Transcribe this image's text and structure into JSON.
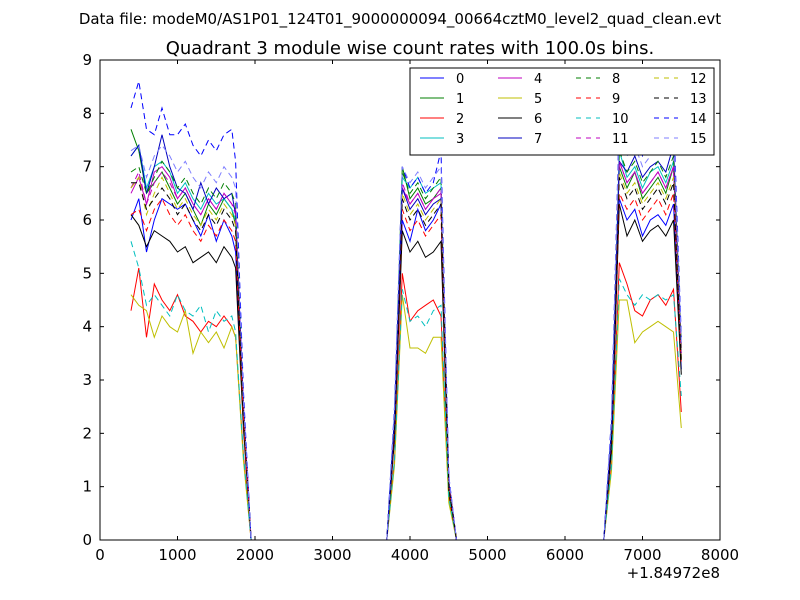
{
  "header": {
    "data_file_line": "Data file: modeM0/AS1P01_124T01_9000000094_00664cztM0_level2_quad_clean.evt"
  },
  "chart_data": {
    "type": "line",
    "title": "Quadrant 3 module wise count rates with 100.0s bins.",
    "xlabel": "",
    "ylabel": "",
    "xlim": [
      0,
      8000
    ],
    "ylim": [
      0,
      9
    ],
    "x_offset_label": "+1.84972e8",
    "x_ticks": [
      0,
      1000,
      2000,
      3000,
      4000,
      5000,
      6000,
      7000,
      8000
    ],
    "x_tick_labels": [
      "0",
      "1000",
      "2000",
      "3000",
      "4000",
      "5000",
      "6000",
      "7000",
      "8000"
    ],
    "y_ticks": [
      0,
      1,
      2,
      3,
      4,
      5,
      6,
      7,
      8,
      9
    ],
    "y_tick_labels": [
      "0",
      "1",
      "2",
      "3",
      "4",
      "5",
      "6",
      "7",
      "8",
      "9"
    ],
    "grid": false,
    "legend": {
      "position": "top-right",
      "columns": 4
    },
    "segments": [
      {
        "x": [
          400,
          500,
          600,
          700,
          800,
          900,
          1000,
          1100,
          1200,
          1300,
          1400,
          1500,
          1600,
          1700,
          1750,
          1850,
          1950
        ]
      },
      {
        "x": [
          3700,
          3800,
          3900,
          4000,
          4100,
          4200,
          4300,
          4400,
          4500,
          4600,
          4700
        ]
      },
      {
        "x": [
          6500,
          6600,
          6700,
          6800,
          6900,
          7000,
          7100,
          7200,
          7300,
          7400,
          7500
        ]
      }
    ],
    "series": [
      {
        "name": "0",
        "color": "#0000ff",
        "dash": "solid",
        "values": [
          [
            6.0,
            6.4,
            5.4,
            6.0,
            6.4,
            6.3,
            6.2,
            6.3,
            6.0,
            5.7,
            6.1,
            5.6,
            6.0,
            5.7,
            5.4,
            2.2,
            0
          ],
          [
            0,
            2.0,
            6.0,
            5.6,
            6.2,
            5.8,
            6.0,
            6.3,
            1.0,
            0,
            0
          ],
          [
            0,
            1.8,
            6.4,
            6.0,
            6.2,
            5.7,
            6.0,
            6.1,
            5.9,
            6.3,
            3.2
          ]
        ]
      },
      {
        "name": "1",
        "color": "#007f00",
        "dash": "solid",
        "values": [
          [
            7.7,
            7.3,
            6.5,
            6.7,
            6.9,
            6.6,
            6.3,
            6.5,
            6.2,
            5.9,
            6.3,
            6.1,
            6.4,
            6.2,
            5.9,
            2.4,
            0
          ],
          [
            0,
            2.2,
            7.0,
            6.4,
            6.6,
            6.3,
            6.4,
            6.6,
            1.1,
            0,
            0
          ],
          [
            0,
            2.0,
            7.0,
            6.6,
            6.9,
            6.4,
            6.6,
            6.8,
            6.5,
            7.0,
            3.4
          ]
        ]
      },
      {
        "name": "2",
        "color": "#ff0000",
        "dash": "solid",
        "values": [
          [
            4.3,
            5.1,
            3.8,
            4.8,
            4.5,
            4.3,
            4.6,
            4.2,
            4.1,
            3.9,
            4.1,
            4.0,
            4.2,
            4.0,
            3.8,
            1.6,
            0
          ],
          [
            0,
            1.5,
            5.0,
            4.1,
            4.3,
            4.4,
            4.5,
            4.2,
            0.8,
            0,
            0
          ],
          [
            0,
            1.4,
            5.2,
            4.8,
            4.3,
            4.2,
            4.5,
            4.6,
            4.4,
            4.7,
            2.4
          ]
        ]
      },
      {
        "name": "3",
        "color": "#00bfbf",
        "dash": "solid",
        "values": [
          [
            7.2,
            7.4,
            6.6,
            7.0,
            7.1,
            6.9,
            6.5,
            6.7,
            6.4,
            6.2,
            6.5,
            6.3,
            6.4,
            6.2,
            6.0,
            2.5,
            0
          ],
          [
            0,
            2.3,
            6.8,
            6.6,
            6.8,
            6.5,
            6.6,
            6.7,
            1.1,
            0,
            0
          ],
          [
            0,
            2.1,
            7.3,
            6.8,
            7.0,
            6.6,
            6.9,
            7.0,
            6.7,
            7.1,
            3.5
          ]
        ]
      },
      {
        "name": "4",
        "color": "#bf00bf",
        "dash": "solid",
        "values": [
          [
            6.5,
            6.8,
            6.3,
            6.9,
            7.0,
            6.8,
            6.4,
            6.6,
            6.3,
            6.1,
            6.4,
            6.2,
            6.5,
            6.3,
            6.2,
            2.5,
            0
          ],
          [
            0,
            2.2,
            6.6,
            6.3,
            6.5,
            6.2,
            6.4,
            6.5,
            1.1,
            0,
            0
          ],
          [
            0,
            2.0,
            7.1,
            6.7,
            6.9,
            6.5,
            6.7,
            6.9,
            6.6,
            7.0,
            3.4
          ]
        ]
      },
      {
        "name": "5",
        "color": "#bfbf00",
        "dash": "solid",
        "values": [
          [
            4.6,
            4.4,
            4.3,
            3.8,
            4.2,
            4.0,
            3.9,
            4.3,
            3.5,
            3.9,
            3.7,
            3.9,
            3.6,
            4.0,
            3.8,
            1.5,
            0
          ],
          [
            0,
            1.4,
            4.6,
            3.6,
            3.6,
            3.5,
            3.8,
            3.8,
            0.7,
            0,
            0
          ],
          [
            0,
            1.3,
            4.5,
            4.5,
            3.7,
            3.9,
            4.0,
            4.1,
            4.0,
            3.9,
            2.1
          ]
        ]
      },
      {
        "name": "6",
        "color": "#000000",
        "dash": "solid",
        "values": [
          [
            6.1,
            5.9,
            5.5,
            5.8,
            5.7,
            5.6,
            5.4,
            5.5,
            5.2,
            5.3,
            5.4,
            5.2,
            5.5,
            5.3,
            5.1,
            2.1,
            0
          ],
          [
            0,
            1.9,
            5.8,
            5.4,
            5.6,
            5.3,
            5.4,
            5.6,
            0.9,
            0,
            0
          ],
          [
            0,
            1.7,
            6.3,
            5.7,
            6.0,
            5.6,
            5.8,
            5.9,
            5.7,
            6.0,
            3.1
          ]
        ]
      },
      {
        "name": "7",
        "color": "#0000bf",
        "dash": "solid",
        "values": [
          [
            7.2,
            7.4,
            6.5,
            7.0,
            7.6,
            7.0,
            6.6,
            6.5,
            6.2,
            6.7,
            6.3,
            6.6,
            6.4,
            6.5,
            6.1,
            2.5,
            0
          ],
          [
            0,
            2.3,
            6.6,
            6.2,
            6.4,
            6.1,
            6.3,
            6.4,
            1.1,
            0,
            0
          ],
          [
            0,
            2.1,
            7.1,
            6.9,
            7.2,
            6.8,
            7.0,
            7.1,
            6.9,
            7.4,
            3.6
          ]
        ]
      },
      {
        "name": "8",
        "color": "#007f00",
        "dash": "dashed",
        "values": [
          [
            6.9,
            7.0,
            6.5,
            6.8,
            7.1,
            6.9,
            6.6,
            6.8,
            6.5,
            6.3,
            6.6,
            6.4,
            6.7,
            6.5,
            6.3,
            2.6,
            0
          ],
          [
            0,
            2.3,
            6.9,
            6.5,
            6.7,
            6.4,
            6.6,
            6.8,
            1.1,
            0,
            0
          ],
          [
            0,
            2.1,
            7.3,
            6.9,
            7.1,
            6.7,
            6.9,
            7.1,
            6.8,
            7.2,
            3.6
          ]
        ]
      },
      {
        "name": "9",
        "color": "#ff0000",
        "dash": "dashed",
        "values": [
          [
            6.1,
            6.2,
            5.8,
            6.2,
            6.4,
            6.1,
            5.9,
            6.1,
            5.8,
            5.6,
            5.9,
            5.7,
            6.0,
            5.8,
            5.6,
            2.3,
            0
          ],
          [
            0,
            2.0,
            6.2,
            5.8,
            6.0,
            5.7,
            5.9,
            6.1,
            1.0,
            0,
            0
          ],
          [
            0,
            1.9,
            6.5,
            6.2,
            6.4,
            6.0,
            6.2,
            6.4,
            6.1,
            6.5,
            3.3
          ]
        ]
      },
      {
        "name": "10",
        "color": "#00bfbf",
        "dash": "dashed",
        "values": [
          [
            5.6,
            5.1,
            4.4,
            4.6,
            4.4,
            4.2,
            4.6,
            4.3,
            4.2,
            4.4,
            3.9,
            4.3,
            4.1,
            4.2,
            3.9,
            1.6,
            0
          ],
          [
            0,
            1.5,
            4.7,
            4.1,
            4.2,
            4.0,
            4.3,
            4.4,
            0.8,
            0,
            0
          ],
          [
            0,
            1.4,
            4.9,
            4.6,
            4.4,
            4.6,
            4.5,
            4.6,
            4.5,
            4.6,
            2.7
          ]
        ]
      },
      {
        "name": "11",
        "color": "#bf00bf",
        "dash": "dashed",
        "values": [
          [
            6.6,
            6.9,
            6.3,
            6.7,
            6.9,
            6.7,
            6.4,
            6.6,
            6.3,
            6.1,
            6.4,
            6.2,
            6.5,
            6.3,
            6.1,
            2.5,
            0
          ],
          [
            0,
            2.2,
            6.7,
            6.3,
            6.5,
            6.2,
            6.4,
            6.6,
            1.1,
            0,
            0
          ],
          [
            0,
            2.0,
            7.1,
            6.7,
            6.9,
            6.5,
            6.7,
            6.9,
            6.6,
            7.0,
            3.5
          ]
        ]
      },
      {
        "name": "12",
        "color": "#bfbf00",
        "dash": "dashed",
        "values": [
          [
            6.6,
            6.8,
            6.1,
            6.5,
            6.8,
            6.5,
            6.2,
            6.4,
            6.1,
            5.9,
            6.2,
            6.0,
            6.3,
            6.1,
            5.9,
            2.4,
            0
          ],
          [
            0,
            2.2,
            6.5,
            6.1,
            6.3,
            6.0,
            6.2,
            6.4,
            1.0,
            0,
            0
          ],
          [
            0,
            2.0,
            6.9,
            6.5,
            6.7,
            6.3,
            6.5,
            6.7,
            6.4,
            6.8,
            3.4
          ]
        ]
      },
      {
        "name": "13",
        "color": "#000000",
        "dash": "dashed",
        "values": [
          [
            6.7,
            6.7,
            6.2,
            6.4,
            6.6,
            6.4,
            6.1,
            6.3,
            6.0,
            5.8,
            6.1,
            5.9,
            6.2,
            6.0,
            5.8,
            2.4,
            0
          ],
          [
            0,
            2.1,
            6.4,
            6.0,
            6.2,
            5.9,
            6.1,
            6.3,
            1.0,
            0,
            0
          ],
          [
            0,
            1.9,
            6.8,
            6.4,
            6.6,
            6.2,
            6.4,
            6.6,
            6.3,
            6.7,
            3.3
          ]
        ]
      },
      {
        "name": "14",
        "color": "#0000ff",
        "dash": "dashed",
        "values": [
          [
            8.1,
            8.6,
            7.7,
            7.6,
            8.1,
            7.6,
            7.6,
            7.8,
            7.4,
            7.2,
            7.5,
            7.3,
            7.6,
            7.7,
            7.1,
            2.8,
            0
          ],
          [
            0,
            2.5,
            7.0,
            6.6,
            6.8,
            6.5,
            6.7,
            7.3,
            1.2,
            0,
            0
          ],
          [
            0,
            2.3,
            8.0,
            7.4,
            7.6,
            7.2,
            7.4,
            8.0,
            7.7,
            8.0,
            3.8
          ]
        ]
      },
      {
        "name": "15",
        "color": "#7f7fff",
        "dash": "dashed",
        "values": [
          [
            7.3,
            7.4,
            6.8,
            7.2,
            7.4,
            7.2,
            6.9,
            7.1,
            6.8,
            6.6,
            6.9,
            6.7,
            7.0,
            6.8,
            6.6,
            2.6,
            0
          ],
          [
            0,
            2.4,
            7.0,
            6.7,
            6.9,
            6.6,
            6.8,
            7.0,
            1.2,
            0,
            0
          ],
          [
            0,
            2.2,
            7.9,
            7.2,
            7.4,
            7.0,
            7.2,
            7.5,
            7.3,
            7.7,
            3.7
          ]
        ]
      }
    ]
  }
}
